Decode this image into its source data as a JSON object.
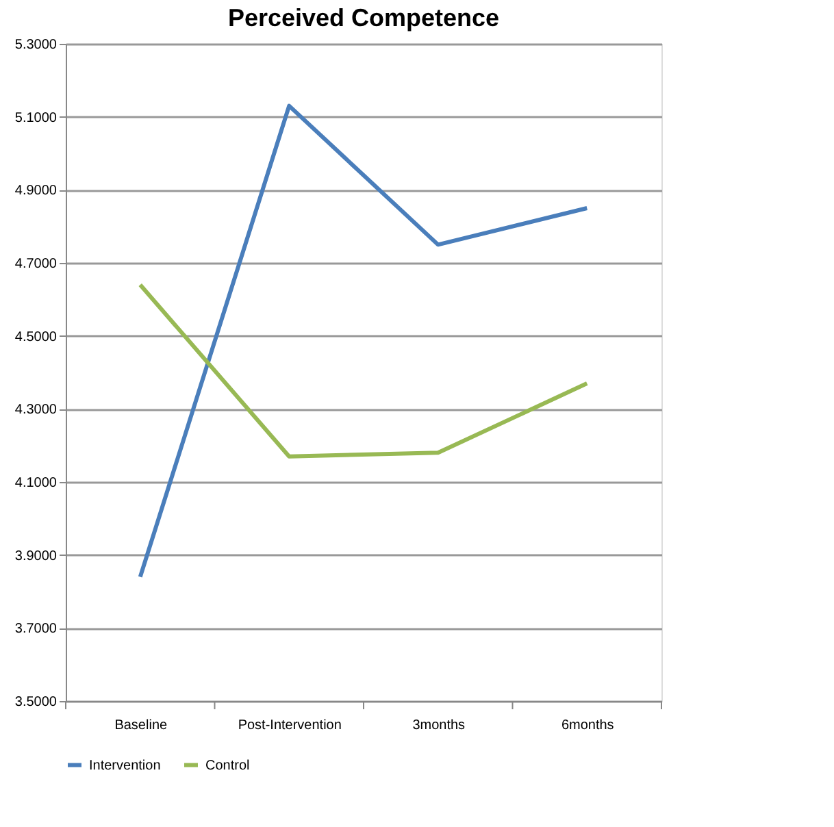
{
  "chart_data": {
    "type": "line",
    "title": "Perceived Competence",
    "categories": [
      "Baseline",
      "Post-Intervention",
      "3months",
      "6months"
    ],
    "series": [
      {
        "name": "Intervention",
        "color": "#4a7ebb",
        "values": [
          3.84,
          5.13,
          4.75,
          4.85
        ]
      },
      {
        "name": "Control",
        "color": "#98b954",
        "values": [
          4.64,
          4.17,
          4.18,
          4.37
        ]
      }
    ],
    "ylim": [
      3.5,
      5.3
    ],
    "yticks": [
      {
        "value": 3.5,
        "label": "3.5000"
      },
      {
        "value": 3.7,
        "label": "3.7000"
      },
      {
        "value": 3.9,
        "label": "3.9000"
      },
      {
        "value": 4.1,
        "label": "4.1000"
      },
      {
        "value": 4.3,
        "label": "4.3000"
      },
      {
        "value": 4.5,
        "label": "4.5000"
      },
      {
        "value": 4.7,
        "label": "4.7000"
      },
      {
        "value": 4.9,
        "label": "4.9000"
      },
      {
        "value": 5.1,
        "label": "5.1000"
      },
      {
        "value": 5.3,
        "label": "5.3000"
      }
    ],
    "grid": "y",
    "legend": "bottom",
    "marker": "none",
    "line_style": "solid"
  }
}
